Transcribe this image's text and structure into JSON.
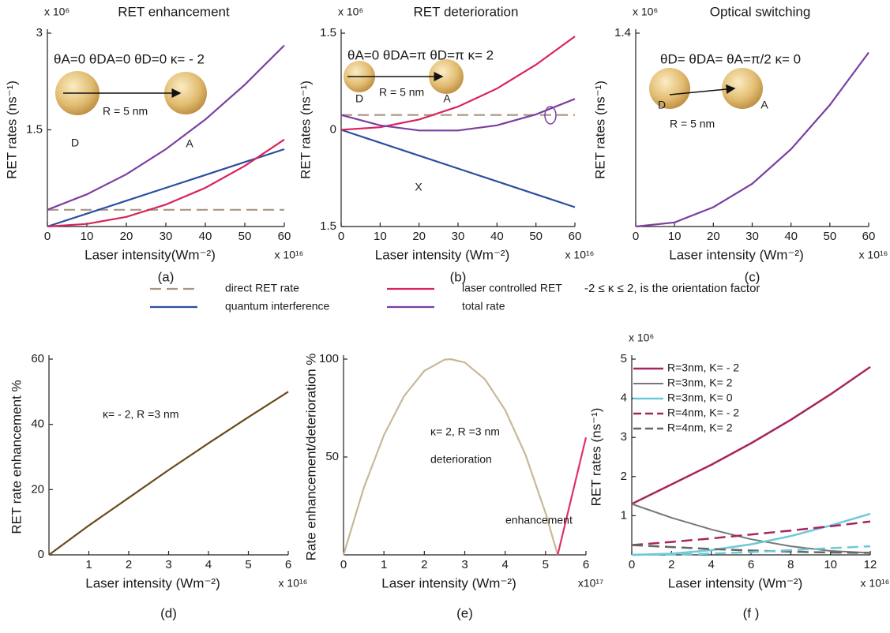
{
  "chart_data": [
    {
      "type": "line",
      "title": "RET enhancement",
      "label": "(a)",
      "xlabel": "Laser intensity(Wm⁻²)",
      "ylabel": "RET rates (ns⁻¹)",
      "xmultiplier": "x 10¹⁶",
      "ymultiplier": "x 10⁶",
      "x": [
        0,
        10,
        20,
        30,
        40,
        50,
        60
      ],
      "xlim": [
        0,
        60
      ],
      "xticks": [
        0,
        10,
        20,
        30,
        40,
        50,
        60
      ],
      "ylim": [
        0,
        3
      ],
      "yticks": [
        1.5,
        3
      ],
      "series": [
        {
          "name": "direct RET rate",
          "color": "#a89684",
          "dashed": true,
          "values": [
            0.26,
            0.26,
            0.26,
            0.26,
            0.26,
            0.26,
            0.26
          ]
        },
        {
          "name": "quantum  interference",
          "color": "#2b4f9e",
          "values": [
            0,
            0.2,
            0.4,
            0.6,
            0.8,
            1.0,
            1.2
          ]
        },
        {
          "name": "laser controlled RET",
          "color": "#d8245c",
          "values": [
            0,
            0.04,
            0.15,
            0.34,
            0.6,
            0.94,
            1.35
          ]
        },
        {
          "name": "total rate",
          "color": "#7b3fa0",
          "values": [
            0.26,
            0.5,
            0.81,
            1.2,
            1.66,
            2.2,
            2.81
          ]
        }
      ],
      "annotations": [
        "θA=0    θDA=0    θD=0      κ= - 2",
        "R = 5 nm",
        "D",
        "A"
      ]
    },
    {
      "type": "line",
      "title": "RET deterioration",
      "label": "(b)",
      "xlabel": "Laser intensity (Wm⁻²)",
      "ylabel": "RET rates (ns⁻¹)",
      "xmultiplier": "x 10¹⁶",
      "ymultiplier": "x 10⁶",
      "x": [
        0,
        10,
        20,
        30,
        40,
        50,
        60
      ],
      "xlim": [
        0,
        60
      ],
      "xticks": [
        0,
        10,
        20,
        30,
        40,
        50,
        60
      ],
      "ylim": [
        -1.5,
        1.5
      ],
      "yticks": [
        {
          "value": -1.5,
          "label": "1.5"
        },
        0,
        1.5
      ],
      "series": [
        {
          "name": "direct RET rate",
          "color": "#a89684",
          "dashed": true,
          "values": [
            0.23,
            0.23,
            0.23,
            0.23,
            0.23,
            0.23,
            0.23
          ]
        },
        {
          "name": "quantum  interference",
          "color": "#2b4f9e",
          "values": [
            0,
            -0.2,
            -0.4,
            -0.6,
            -0.8,
            -1.0,
            -1.2
          ]
        },
        {
          "name": "laser controlled RET",
          "color": "#d8245c",
          "values": [
            0,
            0.04,
            0.16,
            0.36,
            0.64,
            1.01,
            1.45
          ]
        },
        {
          "name": "total rate",
          "color": "#7b3fa0",
          "values": [
            0.23,
            0.07,
            -0.01,
            -0.01,
            0.07,
            0.24,
            0.48
          ]
        }
      ],
      "annotations": [
        "θA=0     θDA=π     θD=π      κ= 2",
        "R = 5 nm",
        "D",
        "A",
        "X"
      ]
    },
    {
      "type": "line",
      "title": "Optical switching",
      "label": "(c)",
      "xlabel": "Laser intensity (Wm⁻²)",
      "ylabel": "RET rates (ns⁻¹)",
      "xmultiplier": "x 10¹⁶",
      "ymultiplier": "x 10⁶",
      "x": [
        0,
        10,
        20,
        30,
        40,
        50,
        60
      ],
      "xlim": [
        0,
        60
      ],
      "xticks": [
        0,
        10,
        20,
        30,
        40,
        50,
        60
      ],
      "ylim": [
        0,
        1.4
      ],
      "yticks": [
        1.4
      ],
      "series": [
        {
          "name": "total rate",
          "color": "#7b3fa0",
          "values": [
            0,
            0.03,
            0.14,
            0.31,
            0.56,
            0.88,
            1.26
          ]
        }
      ],
      "annotations": [
        "θD= θDA= θA=π/2   κ= 0",
        "R = 5 nm",
        "D",
        "A"
      ]
    },
    {
      "type": "line",
      "label": "(d)",
      "xlabel": "Laser intensity (Wm⁻²)",
      "ylabel": "RET rate enhancement %",
      "xmultiplier": "x 10¹⁶",
      "x": [
        0,
        1,
        2,
        3,
        4,
        5,
        6
      ],
      "xlim": [
        0,
        6
      ],
      "xticks": [
        1,
        2,
        3,
        4,
        5,
        6
      ],
      "ylim": [
        0,
        60
      ],
      "yticks": [
        0,
        20,
        40,
        60
      ],
      "series": [
        {
          "color": "#6b4a1c",
          "values": [
            0,
            9,
            17.5,
            26,
            34.2,
            42.2,
            50
          ]
        }
      ],
      "annotations": [
        "κ= - 2, R =3 nm"
      ]
    },
    {
      "type": "line",
      "label": "(e)",
      "xlabel": "Laser intensity (Wm⁻²)",
      "ylabel": "Rate enhancement/deterioration %",
      "xmultiplier": "x10¹⁷",
      "xlim": [
        0,
        6
      ],
      "xticks": [
        0,
        1,
        2,
        3,
        4,
        5,
        6
      ],
      "ylim": [
        0,
        100
      ],
      "yticks": [
        50,
        100
      ],
      "series": [
        {
          "name": "deterioration",
          "color": "#c8b898",
          "x": [
            0,
            0.5,
            1,
            1.5,
            2,
            2.5,
            2.65,
            3,
            3.5,
            4,
            4.5,
            5,
            5.3
          ],
          "values": [
            0,
            34.2,
            61.2,
            81.2,
            94,
            99.7,
            100,
            98.3,
            89.7,
            74,
            51.3,
            21.4,
            0
          ]
        },
        {
          "name": "enhancement",
          "color": "#e0306a",
          "x": [
            5.3,
            6
          ],
          "values": [
            0,
            60
          ]
        }
      ],
      "annotations": [
        "κ= 2, R =3 nm"
      ]
    },
    {
      "type": "line",
      "label": "(f )",
      "xlabel": "Laser intensity (Wm⁻²)",
      "ylabel": "RET rates (ns⁻¹)",
      "xmultiplier": "x 10¹⁶",
      "ymultiplier": "x 10⁶",
      "x": [
        0,
        2,
        4,
        6,
        8,
        10,
        12
      ],
      "xlim": [
        0,
        12
      ],
      "xticks": [
        0,
        2,
        4,
        6,
        8,
        10,
        12
      ],
      "ylim": [
        0,
        5
      ],
      "yticks": [
        1,
        2,
        3,
        4,
        5
      ],
      "series": [
        {
          "name": "R=3nm, K= - 2",
          "color": "#a8245e",
          "width": 2.5,
          "values": [
            1.3,
            1.8,
            2.3,
            2.85,
            3.45,
            4.1,
            4.8
          ]
        },
        {
          "name": "R=3nm, K= 2",
          "color": "#777777",
          "width": 2,
          "values": [
            1.3,
            0.95,
            0.65,
            0.4,
            0.22,
            0.1,
            0.05
          ]
        },
        {
          "name": "R=3nm,  K= 0",
          "color": "#6ccad8",
          "width": 2.5,
          "values": [
            0,
            0.03,
            0.12,
            0.27,
            0.48,
            0.75,
            1.05
          ]
        },
        {
          "name": "R=4nm, K= - 2",
          "color": "#a8245e",
          "width": 2.5,
          "dashed": true,
          "values": [
            0.25,
            0.33,
            0.42,
            0.52,
            0.62,
            0.73,
            0.85
          ]
        },
        {
          "name": "R=4nm, K= 2",
          "color": "#666666",
          "width": 2.5,
          "dashed": true,
          "values": [
            0.25,
            0.2,
            0.15,
            0.11,
            0.08,
            0.06,
            0.05
          ]
        },
        {
          "color": "#6ccad8",
          "width": 2.5,
          "dashed": true,
          "values": [
            0,
            0.01,
            0.03,
            0.07,
            0.12,
            0.17,
            0.22
          ]
        }
      ]
    }
  ],
  "legend_note": "-2 ≤ κ ≤ 2, is the orientation factor"
}
